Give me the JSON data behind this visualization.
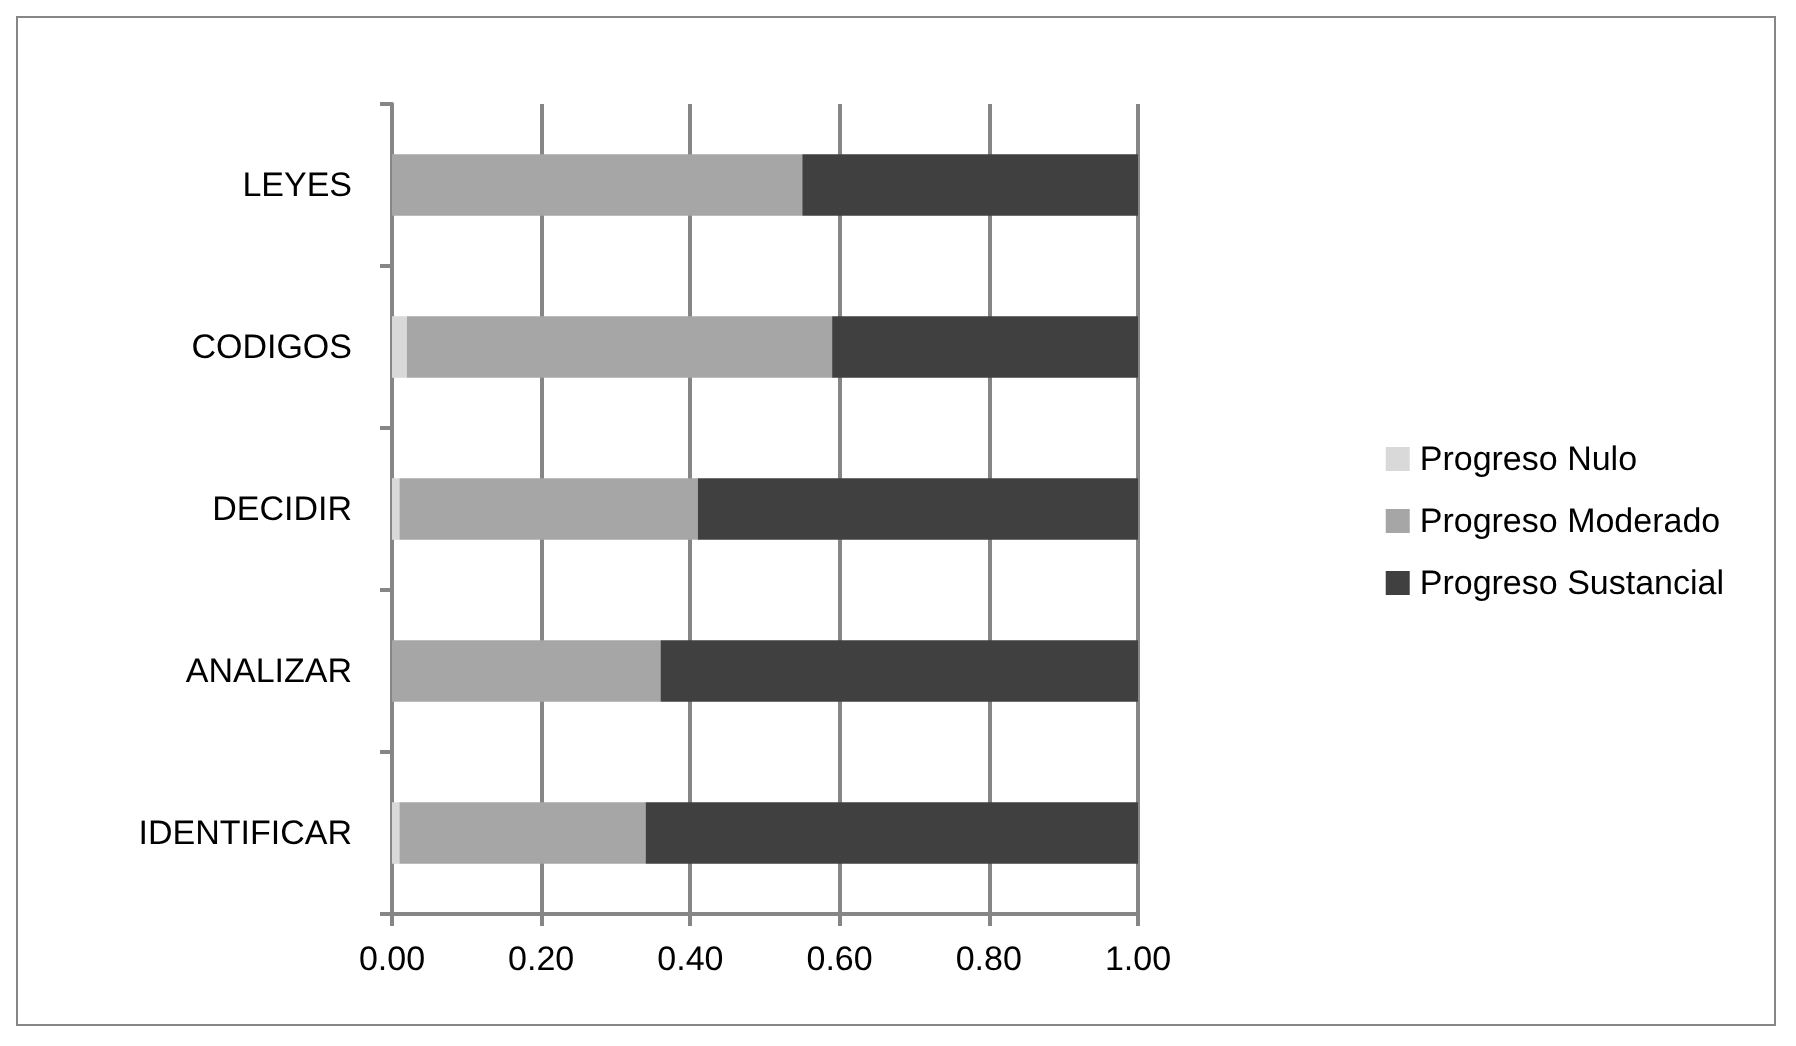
{
  "chart_data": {
    "type": "bar",
    "orientation": "horizontal",
    "stacked": true,
    "categories": [
      "LEYES",
      "CODIGOS",
      "DECIDIR",
      "ANALIZAR",
      "IDENTIFICAR"
    ],
    "series": [
      {
        "name": "Progreso Nulo",
        "color": "#d9d9d9",
        "values": [
          0,
          0.02,
          0.01,
          0,
          0.01
        ]
      },
      {
        "name": "Progreso Moderado",
        "color": "#a6a6a6",
        "values": [
          0.55,
          0.57,
          0.4,
          0.36,
          0.33
        ]
      },
      {
        "name": "Progreso Sustancial",
        "color": "#404040",
        "values": [
          0.45,
          0.41,
          0.59,
          0.64,
          0.66
        ]
      }
    ],
    "xlim": [
      0,
      1
    ],
    "xticks": [
      {
        "value": 0,
        "label": "0.00"
      },
      {
        "value": 0.2,
        "label": "0.20"
      },
      {
        "value": 0.4,
        "label": "0.40"
      },
      {
        "value": 0.6,
        "label": "0.60"
      },
      {
        "value": 0.8,
        "label": "0.80"
      },
      {
        "value": 1,
        "label": "1.00"
      }
    ],
    "grid": "x",
    "legend": "right"
  }
}
